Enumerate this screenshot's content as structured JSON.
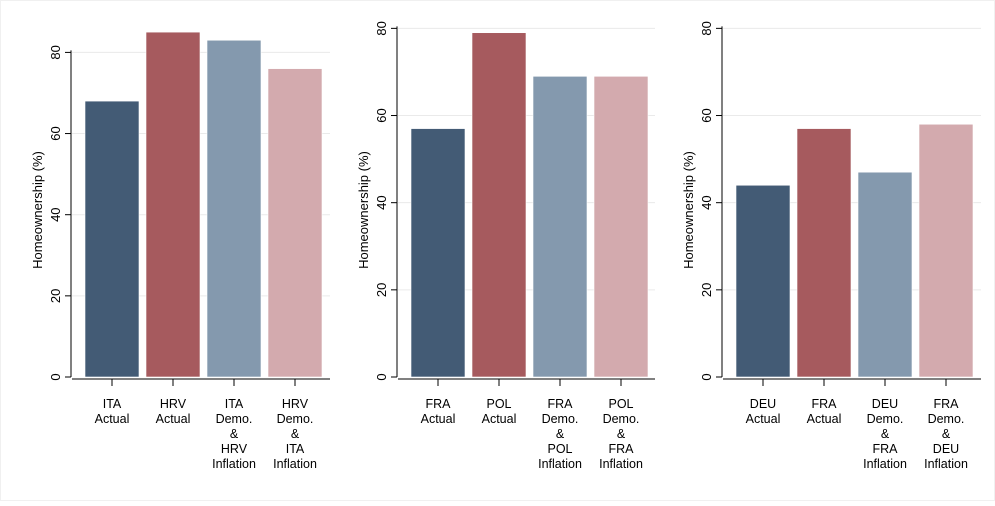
{
  "chart_data": [
    {
      "type": "bar",
      "ylabel": "Homeownership (%)",
      "ylim": [
        0,
        87
      ],
      "yticks": [
        0,
        20,
        40,
        60,
        80
      ],
      "grid": true,
      "categories": [
        "ITA\nActual",
        "HRV\nActual",
        "ITA\nDemo.\n&\nHRV\nInflation",
        "HRV\nDemo.\n&\nITA\nInflation"
      ],
      "values": [
        68,
        85,
        83,
        76
      ],
      "colors": [
        "#435b75",
        "#a65a5e",
        "#8499ae",
        "#d3aaae"
      ]
    },
    {
      "type": "bar",
      "ylabel": "Homeownership (%)",
      "ylim": [
        0,
        81
      ],
      "yticks": [
        0,
        20,
        40,
        60,
        80
      ],
      "grid": true,
      "categories": [
        "FRA\nActual",
        "POL\nActual",
        "FRA\nDemo.\n&\nPOL\nInflation",
        "POL\nDemo.\n&\nFRA\nInflation"
      ],
      "values": [
        57,
        79,
        69,
        69
      ],
      "colors": [
        "#435b75",
        "#a65a5e",
        "#8499ae",
        "#d3aaae"
      ]
    },
    {
      "type": "bar",
      "ylabel": "Homeownership (%)",
      "ylim": [
        0,
        81
      ],
      "yticks": [
        0,
        20,
        40,
        60,
        80
      ],
      "grid": true,
      "categories": [
        "DEU\nActual",
        "FRA\nActual",
        "DEU\nDemo.\n&\nFRA\nInflation",
        "FRA\nDemo.\n&\nDEU\nInflation"
      ],
      "values": [
        44,
        57,
        47,
        58
      ],
      "colors": [
        "#435b75",
        "#a65a5e",
        "#8499ae",
        "#d3aaae"
      ]
    }
  ]
}
